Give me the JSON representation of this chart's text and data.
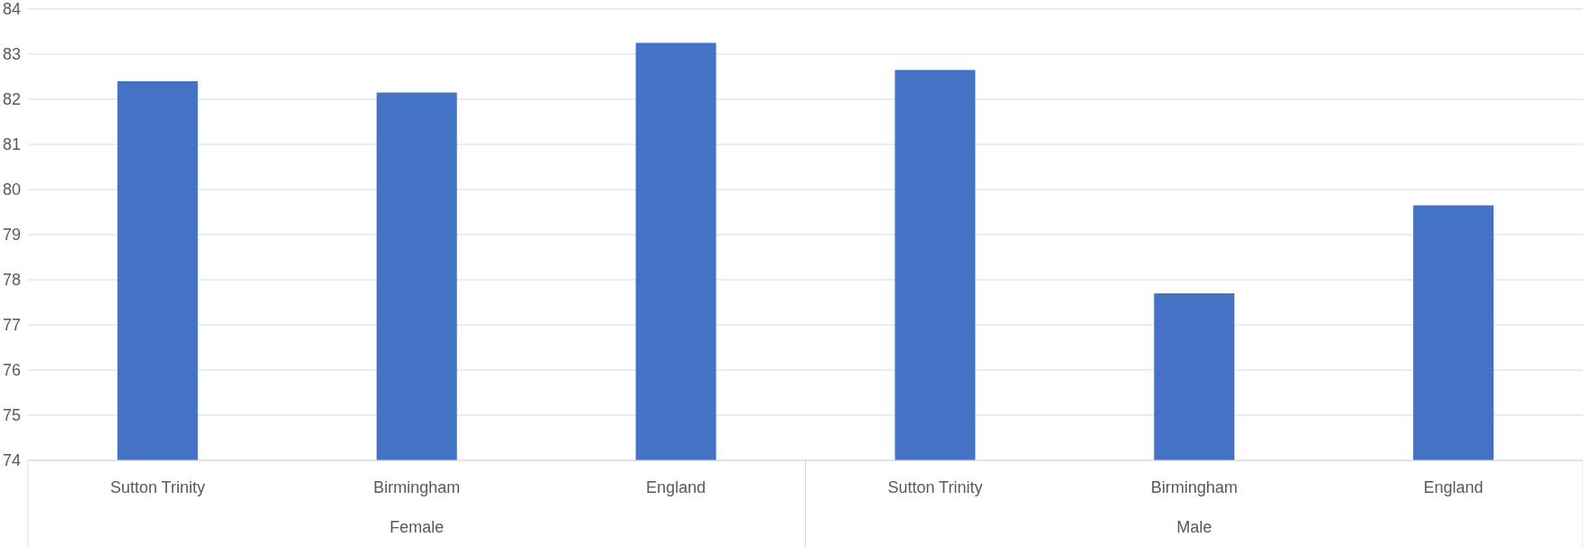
{
  "chart_data": {
    "type": "bar",
    "categories": [
      "Sutton Trinity",
      "Birmingham",
      "England",
      "Sutton Trinity",
      "Birmingham",
      "England"
    ],
    "values": [
      82.4,
      82.15,
      83.25,
      82.65,
      77.7,
      79.65
    ],
    "color": "#4472c4",
    "ylim": [
      74,
      84
    ],
    "yticks": [
      74,
      75,
      76,
      77,
      78,
      79,
      80,
      81,
      82,
      83,
      84
    ],
    "grid": "y",
    "annotations": [
      "Female",
      "Male"
    ]
  }
}
